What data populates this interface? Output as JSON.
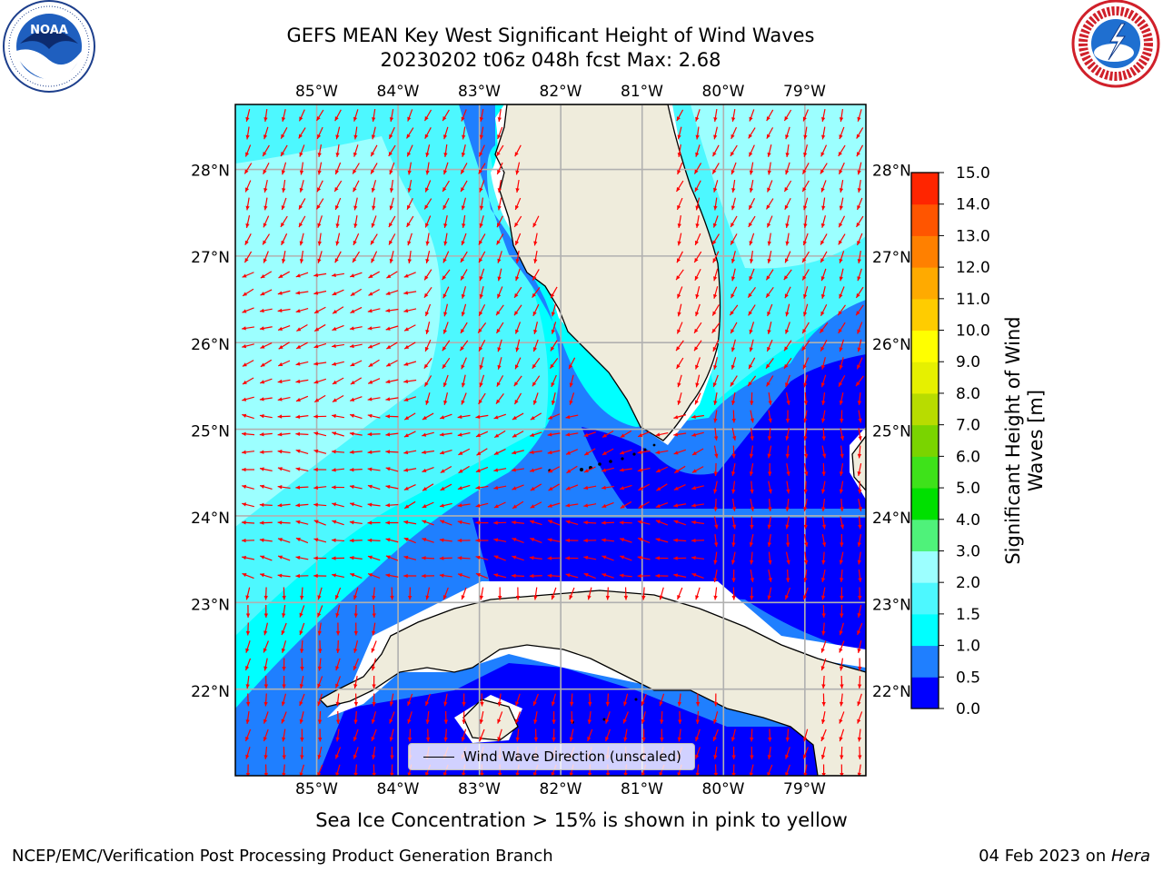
{
  "title": {
    "line1": "GEFS MEAN Key West Significant Height of Wind Waves",
    "line2": "20230202 t06z 048h fcst   Max: 2.68"
  },
  "map": {
    "lon_labels": [
      "85°W",
      "84°W",
      "83°W",
      "82°W",
      "81°W",
      "80°W",
      "79°W"
    ],
    "lat_labels": [
      "28°N",
      "27°N",
      "26°N",
      "25°N",
      "24°N",
      "23°N",
      "22°N"
    ],
    "lon_range": [
      -86.0,
      -78.25
    ],
    "lat_range": [
      21.0,
      28.75
    ],
    "land_color": "#efecdc",
    "grid_color": "#b0b0b0",
    "arrow_color": "#ff0000",
    "legend_label": "Wind Wave Direction (unscaled)"
  },
  "colorbar": {
    "title": "Significant Height of Wind Waves [m]",
    "tick_labels": [
      "0.0",
      "0.5",
      "1.0",
      "1.5",
      "2.0",
      "3.0",
      "4.0",
      "5.0",
      "6.0",
      "7.0",
      "8.0",
      "9.0",
      "10.0",
      "11.0",
      "12.0",
      "13.0",
      "14.0",
      "15.0"
    ],
    "colors": [
      "#0000ff",
      "#1f7fff",
      "#00ffff",
      "#4df8ff",
      "#9cffff",
      "#4ff27a",
      "#00e000",
      "#3ee21a",
      "#7ad400",
      "#b8dc00",
      "#e6f000",
      "#ffff00",
      "#ffcc00",
      "#ffaa00",
      "#ff8000",
      "#ff5500",
      "#ff2500"
    ]
  },
  "ice_note": "Sea Ice Concentration > 15% is shown in pink to yellow",
  "footer": {
    "left": "NCEP/EMC/Verification Post Processing Product Generation Branch",
    "right_date": "04 Feb 2023 on ",
    "right_machine": "Hera"
  }
}
